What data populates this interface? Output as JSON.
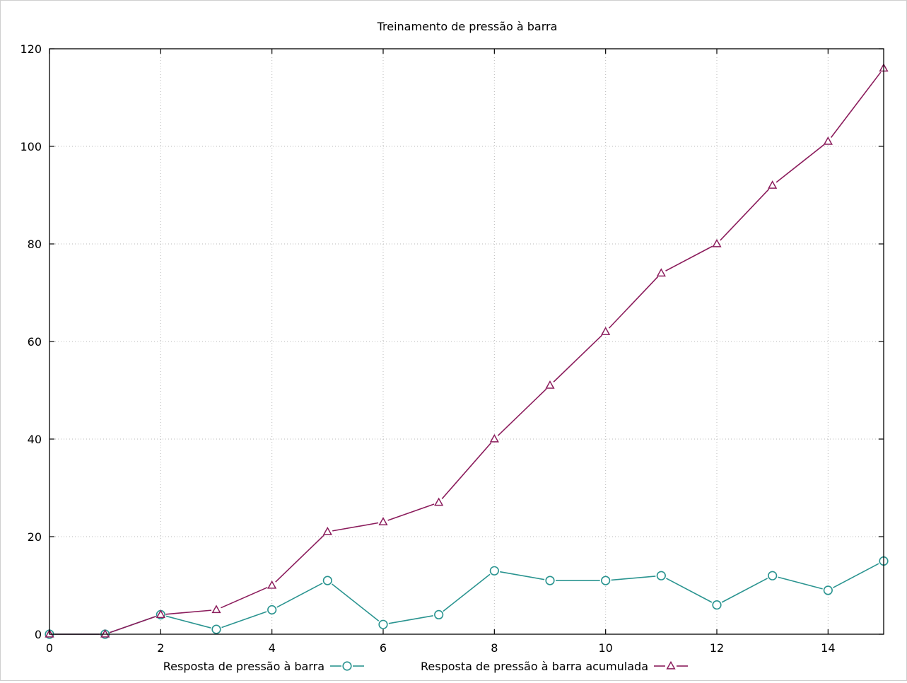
{
  "chart_data": {
    "type": "line",
    "title": "Treinamento de pressão à barra",
    "xlabel": "",
    "ylabel": "",
    "xlim": [
      0,
      15
    ],
    "ylim": [
      0,
      120
    ],
    "x_ticks": [
      0,
      2,
      4,
      6,
      8,
      10,
      12,
      14
    ],
    "y_ticks": [
      0,
      20,
      40,
      60,
      80,
      100,
      120
    ],
    "x_tick_labels": [
      "0",
      "2",
      "4",
      "6",
      "8",
      "10",
      "12",
      "14"
    ],
    "y_tick_labels": [
      "0",
      "20",
      "40",
      "60",
      "80",
      "100",
      "120"
    ],
    "grid": true,
    "legend_position": "bottom",
    "x": [
      0,
      1,
      2,
      3,
      4,
      5,
      6,
      7,
      8,
      9,
      10,
      11,
      12,
      13,
      14,
      15
    ],
    "series": [
      {
        "name": "Resposta de pressão à barra",
        "color": "#2a9490",
        "marker": "circle",
        "values": [
          0,
          0,
          4,
          1,
          5,
          11,
          2,
          4,
          13,
          11,
          11,
          12,
          6,
          12,
          9,
          15
        ]
      },
      {
        "name": "Resposta de pressão à barra acumulada",
        "color": "#8b1c5c",
        "marker": "triangle",
        "values": [
          0,
          0,
          4,
          5,
          10,
          21,
          23,
          27,
          40,
          51,
          62,
          74,
          80,
          92,
          101,
          116
        ]
      }
    ]
  }
}
